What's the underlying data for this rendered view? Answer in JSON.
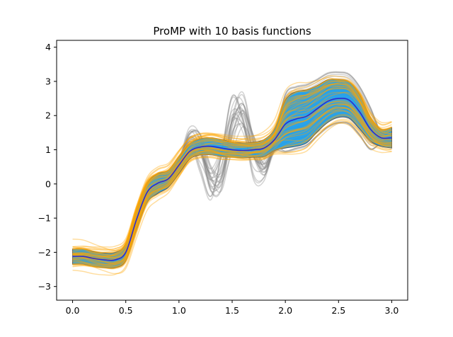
{
  "chart_data": {
    "type": "line",
    "title": "ProMP with 10 basis functions",
    "xlabel": "",
    "ylabel": "",
    "xlim": [
      -0.15,
      3.15
    ],
    "ylim": [
      -3.4,
      4.2
    ],
    "xticks": [
      0.0,
      0.5,
      1.0,
      1.5,
      2.0,
      2.5,
      3.0
    ],
    "xtick_labels": [
      "0.0",
      "0.5",
      "1.0",
      "1.5",
      "2.0",
      "2.5",
      "3.0"
    ],
    "yticks": [
      -3,
      -2,
      -1,
      0,
      1,
      2,
      3,
      4
    ],
    "ytick_labels": [
      "−3",
      "−2",
      "−1",
      "0",
      "1",
      "2",
      "3",
      "4"
    ],
    "grid": false,
    "colors": {
      "demonstrations": "#808080",
      "samples": "#ffa500",
      "band": "#1f9ee8",
      "band_edge": "#555555",
      "mean": "#2a2ad0"
    },
    "series": [
      {
        "role": "mean",
        "x": [
          0.0,
          0.1,
          0.2,
          0.3,
          0.4,
          0.5,
          0.6,
          0.7,
          0.8,
          0.9,
          1.0,
          1.1,
          1.2,
          1.3,
          1.4,
          1.5,
          1.6,
          1.7,
          1.8,
          1.9,
          2.0,
          2.1,
          2.2,
          2.3,
          2.4,
          2.5,
          2.6,
          2.7,
          2.8,
          2.9,
          3.0
        ],
        "y": [
          -2.12,
          -2.12,
          -2.18,
          -2.22,
          -2.22,
          -2.0,
          -1.05,
          -0.25,
          0.02,
          0.15,
          0.55,
          0.95,
          1.08,
          1.1,
          1.05,
          1.0,
          0.98,
          1.0,
          1.05,
          1.3,
          1.75,
          1.9,
          1.98,
          2.2,
          2.42,
          2.5,
          2.45,
          2.1,
          1.6,
          1.35,
          1.35
        ]
      },
      {
        "role": "band_upper",
        "x": [
          0.0,
          0.1,
          0.2,
          0.3,
          0.4,
          0.5,
          0.6,
          0.7,
          0.8,
          0.9,
          1.0,
          1.1,
          1.2,
          1.3,
          1.4,
          1.5,
          1.6,
          1.7,
          1.8,
          1.9,
          2.0,
          2.1,
          2.2,
          2.3,
          2.4,
          2.5,
          2.6,
          2.7,
          2.8,
          2.9,
          3.0
        ],
        "y": [
          -1.9,
          -1.9,
          -1.98,
          -2.02,
          -2.0,
          -1.75,
          -0.75,
          0.02,
          0.3,
          0.4,
          0.8,
          1.18,
          1.32,
          1.35,
          1.3,
          1.22,
          1.2,
          1.22,
          1.3,
          1.62,
          2.45,
          2.7,
          2.75,
          2.88,
          3.05,
          3.05,
          2.98,
          2.6,
          1.95,
          1.6,
          1.65
        ]
      },
      {
        "role": "band_lower",
        "x": [
          0.0,
          0.1,
          0.2,
          0.3,
          0.4,
          0.5,
          0.6,
          0.7,
          0.8,
          0.9,
          1.0,
          1.1,
          1.2,
          1.3,
          1.4,
          1.5,
          1.6,
          1.7,
          1.8,
          1.9,
          2.0,
          2.1,
          2.2,
          2.3,
          2.4,
          2.5,
          2.6,
          2.7,
          2.8,
          2.9,
          3.0
        ],
        "y": [
          -2.35,
          -2.35,
          -2.42,
          -2.45,
          -2.45,
          -2.25,
          -1.35,
          -0.55,
          -0.28,
          -0.1,
          0.3,
          0.72,
          0.85,
          0.85,
          0.8,
          0.78,
          0.76,
          0.78,
          0.8,
          0.98,
          1.05,
          1.1,
          1.2,
          1.52,
          1.8,
          1.95,
          1.92,
          1.6,
          1.25,
          1.1,
          1.05
        ]
      }
    ]
  }
}
